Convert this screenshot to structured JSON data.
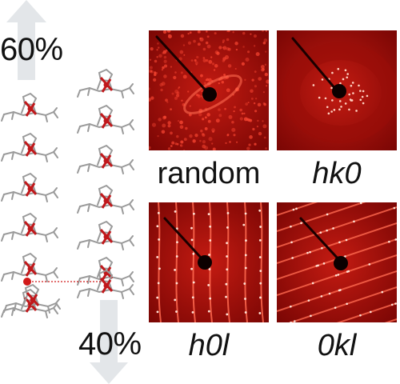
{
  "figure": {
    "percent_top": "60%",
    "percent_bottom": "40%",
    "panels": [
      {
        "id": "random",
        "label": "random",
        "italic": false
      },
      {
        "id": "hk0",
        "label": "hk0",
        "italic": true
      },
      {
        "id": "h0l",
        "label": "h0l",
        "italic": true
      },
      {
        "id": "0kl",
        "label": "0kl",
        "italic": true
      }
    ],
    "colors": {
      "arrow": "#e3e6e9",
      "pattern_bg": "#7a0604",
      "pattern_glow": "#c41b12",
      "streak": "#ff6a50",
      "molecule_gray": "#9a9a9a",
      "metal_red": "#c0181b",
      "dot_red": "#d11a1a"
    }
  }
}
